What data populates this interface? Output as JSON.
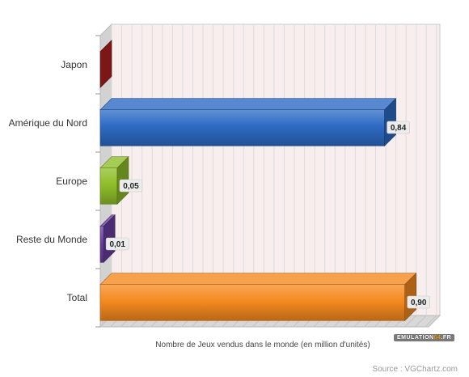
{
  "chart_data": {
    "type": "bar",
    "orientation": "horizontal",
    "categories": [
      "Japon",
      "Amérique du Nord",
      "Europe",
      "Reste du Monde",
      "Total"
    ],
    "values": [
      0,
      0.84,
      0.05,
      0.01,
      0.9
    ],
    "value_labels": [
      "",
      "0,84",
      "0,05",
      "0,01",
      "0,90"
    ],
    "colors": [
      "#8b1a1a",
      "#2e6bc4",
      "#8fbf2a",
      "#6a3fa0",
      "#f58a1f"
    ],
    "xlabel": "Nombre de Jeux vendus dans le monde (en million d'unités)",
    "xlim": [
      0,
      0.97
    ],
    "grid": true,
    "legend": "none"
  },
  "logo": {
    "text_main": "EMULATION",
    "text_accent": "64",
    "text_tail": ".FR"
  },
  "source": "Source : VGChartz.com"
}
